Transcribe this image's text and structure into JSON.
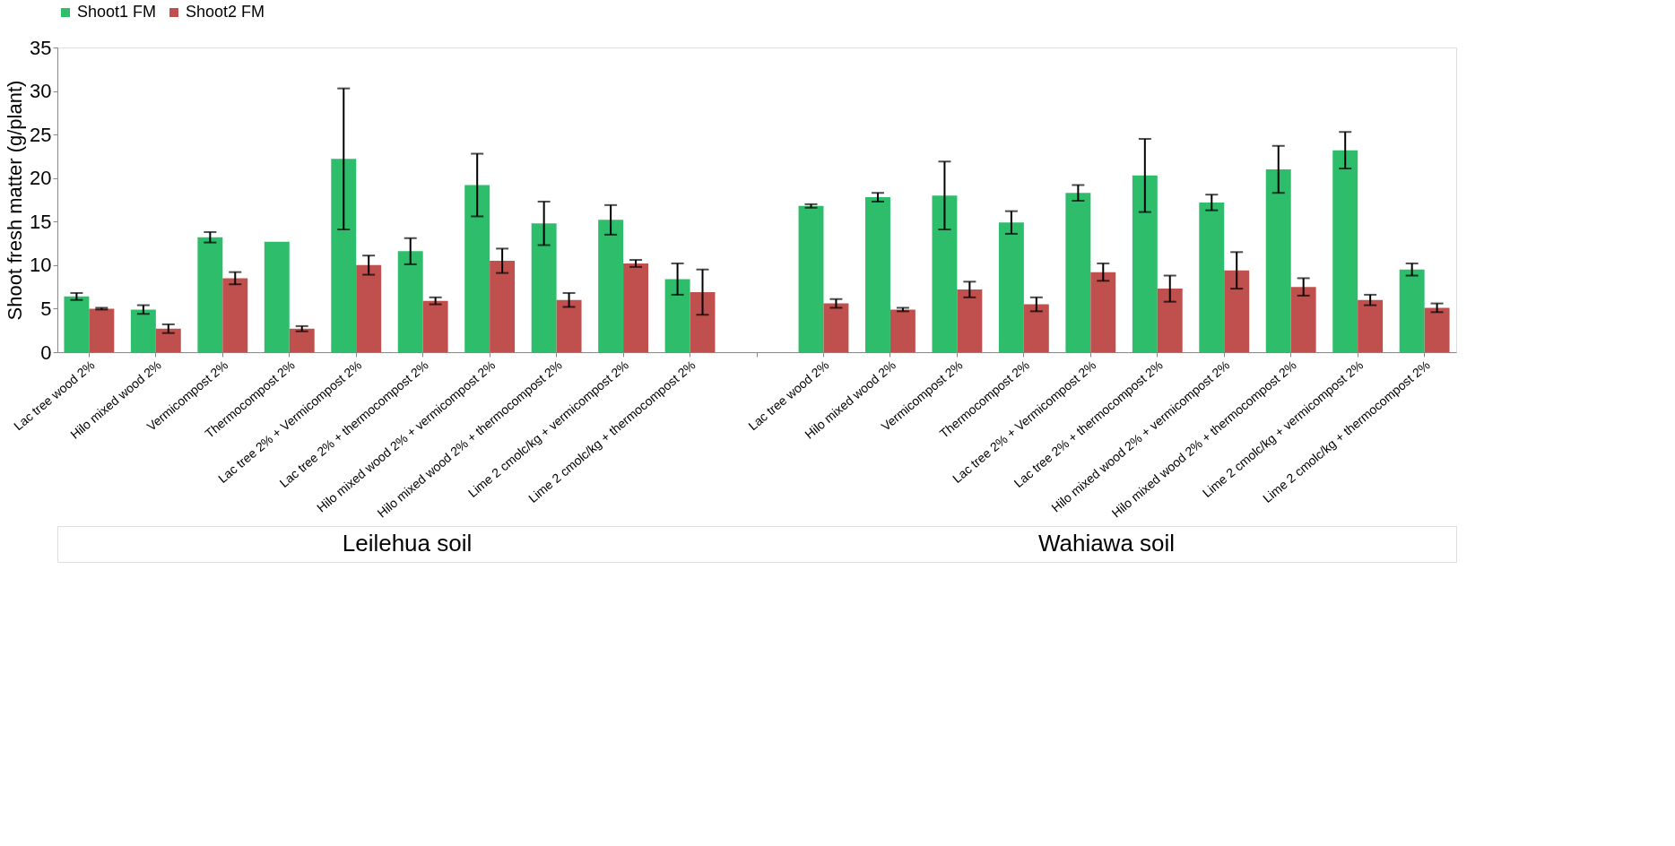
{
  "chart_data": {
    "type": "bar",
    "ylabel": "Shoot fresh matter (g/plant)",
    "categories": [
      "Lac tree  wood 2%",
      "Hilo mixed wood 2%",
      "Vermicompost 2%",
      "Thermocompost 2%",
      "Lac tree 2% + Vermicompost 2%",
      "Lac tree 2% + thermocompost 2%",
      "Hilo mixed wood 2% + vermicompost 2%",
      "Hilo mixed wood 2% + thermocompost 2%",
      "Lime 2 cmolc/kg + vermicompost 2%",
      "Lime 2 cmolc/kg + thermocompost 2%",
      null,
      "Lac tree wood 2%",
      "Hilo mixed wood 2%",
      "Vermicompost 2%",
      "Thermocompost 2%",
      "Lac tree 2% + Vermicompost 2%",
      "Lac tree 2% + thermocompost 2%",
      "Hilo mixed wood 2% + vermicompost 2%",
      "Hilo mixed wood 2% + thermocompost 2%",
      "Lime 2 cmolc/kg + vermicompost 2%",
      "Lime 2 cmolc/kg + thermocompost 2%"
    ],
    "series": [
      {
        "name": "Shoot1 FM",
        "color": "#2ebd6b",
        "values": [
          6.4,
          4.9,
          13.2,
          12.7,
          22.2,
          11.6,
          19.2,
          14.8,
          15.2,
          8.4,
          null,
          16.8,
          17.8,
          18.0,
          14.9,
          18.3,
          20.3,
          17.2,
          21.0,
          23.2,
          9.5
        ],
        "errors": [
          0.4,
          0.5,
          0.6,
          null,
          8.1,
          1.5,
          3.6,
          2.5,
          1.7,
          1.8,
          null,
          0.2,
          0.5,
          3.9,
          1.3,
          0.9,
          4.2,
          0.9,
          2.7,
          2.1,
          0.7
        ]
      },
      {
        "name": "Shoot2 FM",
        "color": "#c0504d",
        "values": [
          5.0,
          2.7,
          8.5,
          2.7,
          10.0,
          5.9,
          10.5,
          6.0,
          10.2,
          6.9,
          null,
          5.6,
          4.9,
          7.2,
          5.5,
          9.2,
          7.3,
          9.4,
          7.5,
          6.0,
          5.1
        ],
        "errors": [
          0.1,
          0.5,
          0.7,
          0.3,
          1.1,
          0.4,
          1.4,
          0.8,
          0.4,
          2.6,
          null,
          0.5,
          0.2,
          0.9,
          0.8,
          1.0,
          1.5,
          2.1,
          1.0,
          0.6,
          0.5
        ]
      }
    ],
    "ylim": [
      0,
      35
    ],
    "yticks": [
      0,
      5,
      10,
      15,
      20,
      25,
      30,
      35
    ],
    "grid": false,
    "legend": "top",
    "annotations": [
      "Leilehua soil",
      "Wahiawa soil"
    ]
  }
}
